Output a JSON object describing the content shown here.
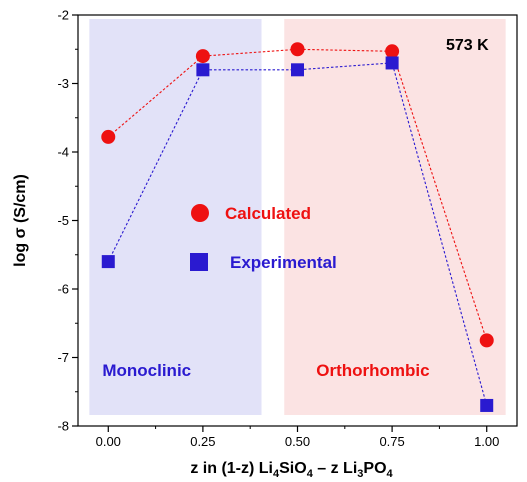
{
  "chart_data": {
    "type": "scatter",
    "xlabel_parts": [
      {
        "t": "z in (1-z) Li",
        "s": "n"
      },
      {
        "t": "4",
        "s": "sub"
      },
      {
        "t": "SiO",
        "s": "n"
      },
      {
        "t": "4",
        "s": "sub"
      },
      {
        "t": " – z Li",
        "s": "n"
      },
      {
        "t": "3",
        "s": "sub"
      },
      {
        "t": "PO",
        "s": "n"
      },
      {
        "t": "4",
        "s": "sub"
      }
    ],
    "ylabel": "log σ (S/cm)",
    "xlim": [
      -0.08,
      1.08
    ],
    "ylim": [
      -8,
      -2
    ],
    "x_ticks": [
      0.0,
      0.25,
      0.5,
      0.75,
      1.0
    ],
    "x_tick_labels": [
      "0.00",
      "0.25",
      "0.50",
      "0.75",
      "1.00"
    ],
    "y_ticks": [
      -2,
      -3,
      -4,
      -5,
      -6,
      -7,
      -8
    ],
    "y_tick_labels": [
      "-2",
      "-3",
      "-4",
      "-5",
      "-6",
      "-7",
      "-8"
    ],
    "annotation": "573 K",
    "regions": [
      {
        "label": "Monoclinic",
        "x_range": [
          -0.05,
          0.405
        ],
        "fill": "#e2e2f8",
        "label_color": "#2a1ad0"
      },
      {
        "label": "Orthorhombic",
        "x_range": [
          0.465,
          1.05
        ],
        "fill": "#fbe3e3",
        "label_color": "#ee1111"
      }
    ],
    "series": [
      {
        "name": "Calculated",
        "marker": "circle",
        "color": "#ee1111",
        "x": [
          0.0,
          0.25,
          0.5,
          0.75,
          1.0
        ],
        "y": [
          -3.78,
          -2.6,
          -2.5,
          -2.53,
          -6.75
        ]
      },
      {
        "name": "Experimental",
        "marker": "square",
        "color": "#2a1ad0",
        "x": [
          0.0,
          0.25,
          0.5,
          0.75,
          1.0
        ],
        "y": [
          -5.6,
          -2.8,
          -2.8,
          -2.7,
          -7.7
        ]
      }
    ]
  }
}
